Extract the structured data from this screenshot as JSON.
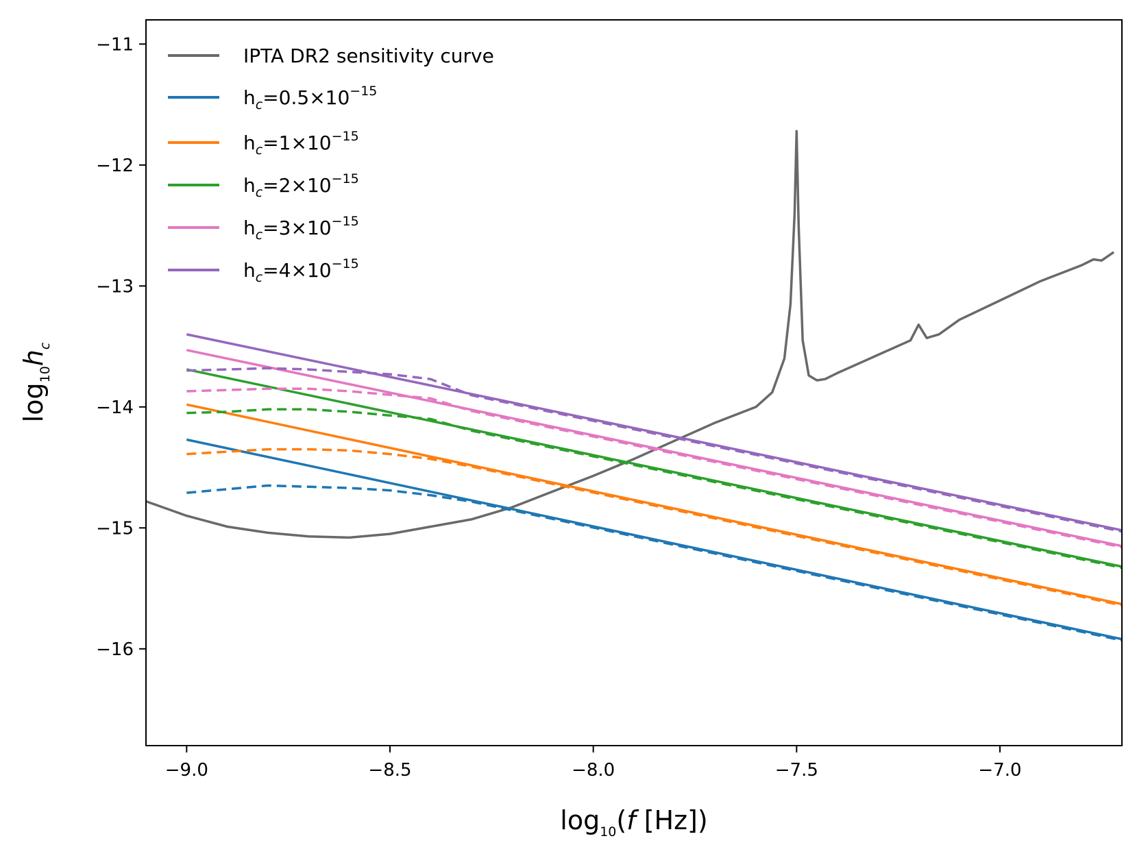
{
  "chart_data": {
    "type": "line",
    "xlabel": {
      "prefix": "log",
      "sub": "10",
      "paren_open": "(",
      "italic": "f",
      "suffix": " [Hz])"
    },
    "ylabel": {
      "prefix": "log",
      "sub": "10",
      "italic": "h",
      "italic_sub": "c"
    },
    "xlim": [
      -9.1,
      -6.7
    ],
    "ylim": [
      -16.8,
      -10.8
    ],
    "xticks": [
      -9.0,
      -8.5,
      -8.0,
      -7.5,
      -7.0
    ],
    "xtick_labels": [
      "−9.0",
      "−8.5",
      "−8.0",
      "−7.5",
      "−7.0"
    ],
    "yticks": [
      -16,
      -15,
      -14,
      -13,
      -12,
      -11
    ],
    "ytick_labels": [
      "−16",
      "−15",
      "−14",
      "−13",
      "−12",
      "−11"
    ],
    "grid": false,
    "legend_placement": "top-left",
    "colors": {
      "sensitivity": "#696969",
      "s05": "#1f77b4",
      "s1": "#ff7f0e",
      "s2": "#2ca02c",
      "s3": "#e377c2",
      "s4": "#9467bd"
    },
    "sensitivity_curve": {
      "name": "IPTA DR2 sensitivity curve",
      "color_key": "sensitivity",
      "x": [
        -9.1,
        -9.0,
        -8.9,
        -8.8,
        -8.7,
        -8.6,
        -8.5,
        -8.4,
        -8.3,
        -8.2,
        -8.1,
        -8.0,
        -7.9,
        -7.8,
        -7.7,
        -7.6,
        -7.56,
        -7.53,
        -7.515,
        -7.505,
        -7.5,
        -7.495,
        -7.485,
        -7.47,
        -7.45,
        -7.43,
        -7.4,
        -7.3,
        -7.22,
        -7.2,
        -7.18,
        -7.15,
        -7.1,
        -7.0,
        -6.9,
        -6.8,
        -6.77,
        -6.75,
        -6.72
      ],
      "y": [
        -14.78,
        -14.9,
        -14.99,
        -15.04,
        -15.07,
        -15.08,
        -15.05,
        -14.99,
        -14.93,
        -14.83,
        -14.7,
        -14.57,
        -14.43,
        -14.28,
        -14.13,
        -14.0,
        -13.88,
        -13.6,
        -13.15,
        -12.4,
        -11.72,
        -12.5,
        -13.45,
        -13.74,
        -13.78,
        -13.77,
        -13.72,
        -13.57,
        -13.45,
        -13.32,
        -13.43,
        -13.4,
        -13.28,
        -13.12,
        -12.96,
        -12.83,
        -12.78,
        -12.79,
        -12.72
      ]
    },
    "series": [
      {
        "name_prefix": "h",
        "name_sub": "c",
        "name_mid": "=0.5×10",
        "name_sup": "−15",
        "color_key": "s05",
        "solid_start": [
          -9.0,
          -14.27
        ],
        "solid_end": [
          -6.7,
          -15.92
        ],
        "dashed_x": [
          -9.0,
          -8.9,
          -8.8,
          -8.7,
          -8.6,
          -8.5,
          -8.4
        ],
        "dashed_y": [
          -14.71,
          -14.68,
          -14.65,
          -14.66,
          -14.67,
          -14.69,
          -14.73
        ]
      },
      {
        "name_prefix": "h",
        "name_sub": "c",
        "name_mid": "=1×10",
        "name_sup": "−15",
        "color_key": "s1",
        "solid_start": [
          -9.0,
          -13.98
        ],
        "solid_end": [
          -6.7,
          -15.63
        ],
        "dashed_x": [
          -9.0,
          -8.9,
          -8.8,
          -8.7,
          -8.6,
          -8.5,
          -8.4
        ],
        "dashed_y": [
          -14.39,
          -14.37,
          -14.35,
          -14.35,
          -14.36,
          -14.39,
          -14.43
        ]
      },
      {
        "name_prefix": "h",
        "name_sub": "c",
        "name_mid": "=2×10",
        "name_sup": "−15",
        "color_key": "s2",
        "solid_start": [
          -9.0,
          -13.69
        ],
        "solid_end": [
          -6.7,
          -15.32
        ],
        "dashed_x": [
          -9.0,
          -8.9,
          -8.8,
          -8.7,
          -8.6,
          -8.5,
          -8.4
        ],
        "dashed_y": [
          -14.05,
          -14.04,
          -14.02,
          -14.02,
          -14.04,
          -14.07,
          -14.1
        ]
      },
      {
        "name_prefix": "h",
        "name_sub": "c",
        "name_mid": "=3×10",
        "name_sup": "−15",
        "color_key": "s3",
        "solid_start": [
          -9.0,
          -13.53
        ],
        "solid_end": [
          -6.7,
          -15.15
        ],
        "dashed_x": [
          -9.0,
          -8.9,
          -8.8,
          -8.7,
          -8.6,
          -8.5,
          -8.4
        ],
        "dashed_y": [
          -13.87,
          -13.86,
          -13.85,
          -13.85,
          -13.87,
          -13.9,
          -13.93
        ]
      },
      {
        "name_prefix": "h",
        "name_sub": "c",
        "name_mid": "=4×10",
        "name_sup": "−15",
        "color_key": "s4",
        "solid_start": [
          -9.0,
          -13.4
        ],
        "solid_end": [
          -6.7,
          -15.02
        ],
        "dashed_x": [
          -9.0,
          -8.9,
          -8.8,
          -8.7,
          -8.6,
          -8.5,
          -8.4
        ],
        "dashed_y": [
          -13.7,
          -13.69,
          -13.68,
          -13.69,
          -13.71,
          -13.73,
          -13.77
        ]
      }
    ]
  }
}
